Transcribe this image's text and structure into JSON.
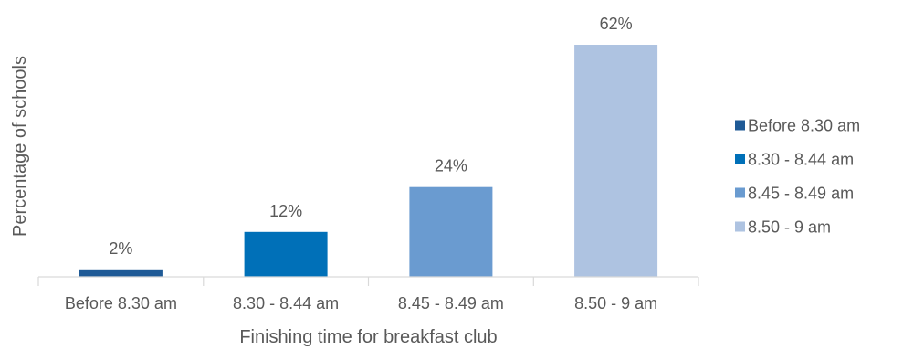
{
  "chart_data": {
    "type": "bar",
    "categories": [
      "Before 8.30 am",
      "8.30 - 8.44 am",
      "8.45 - 8.49 am",
      "8.50 - 9 am"
    ],
    "values": [
      2,
      12,
      24,
      62
    ],
    "value_labels": [
      "2%",
      "12%",
      "24%",
      "62%"
    ],
    "colors": [
      "#1f5a96",
      "#0070b8",
      "#6a9bd0",
      "#aec3e1"
    ],
    "title": "",
    "xlabel": "Finishing time for breakfast club",
    "ylabel": "Percentage of schools",
    "ylim": [
      0,
      62
    ],
    "grid": false,
    "legend_position": "right",
    "legend": [
      "Before 8.30 am",
      "8.30 - 8.44 am",
      "8.45 - 8.49 am",
      "8.50 - 9 am"
    ]
  }
}
